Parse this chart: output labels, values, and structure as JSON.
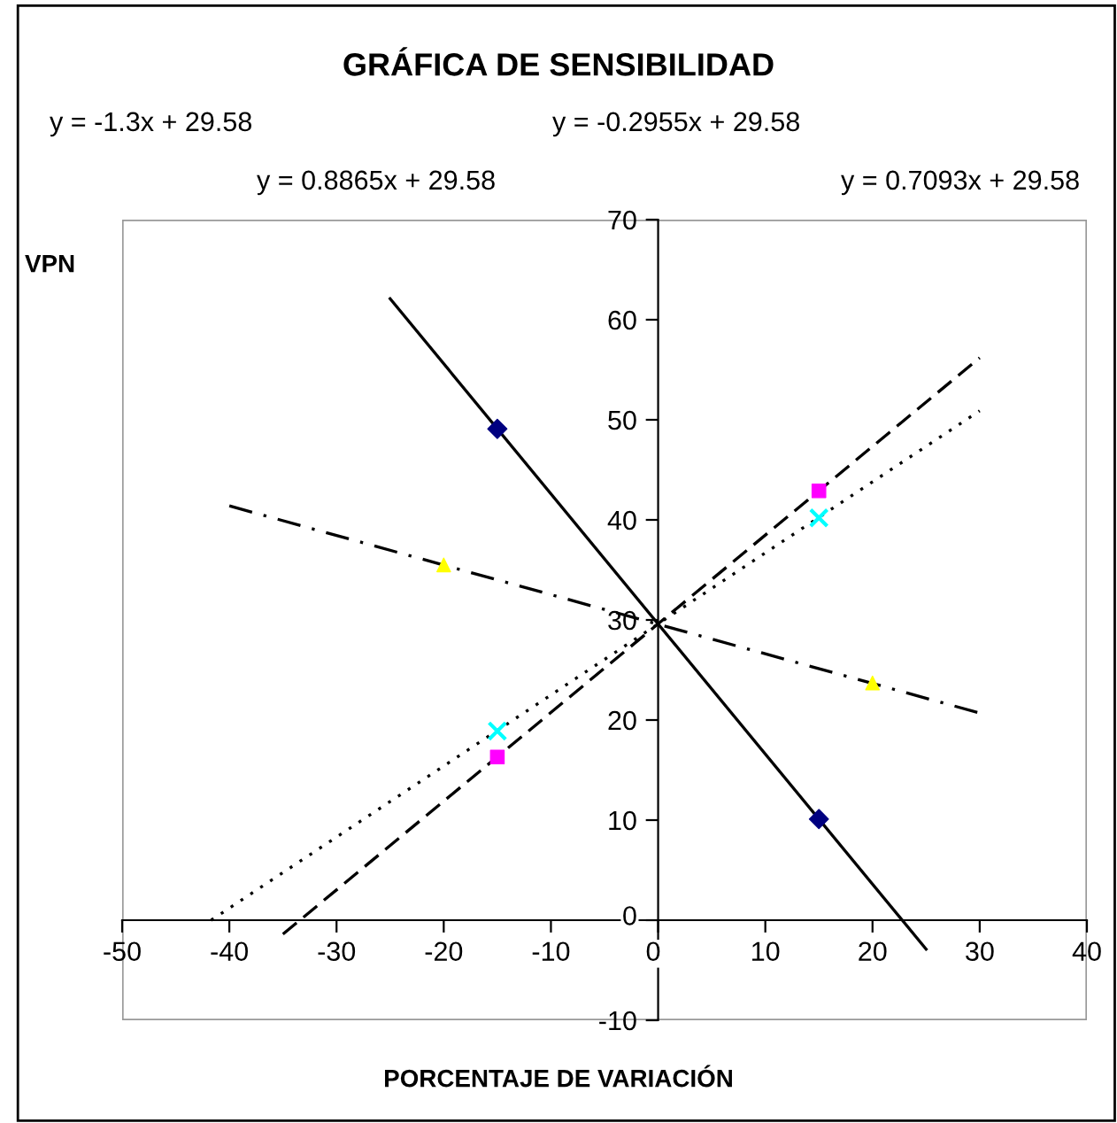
{
  "chart_data": {
    "type": "scatter",
    "title": "GRÁFICA DE SENSIBILIDAD",
    "xlabel": "PORCENTAJE DE VARIACIÓN",
    "ylabel": "VPN",
    "xlim": [
      -50,
      40
    ],
    "xticks": [
      -50,
      -40,
      -30,
      -20,
      -10,
      0,
      10,
      20,
      30,
      40
    ],
    "ylim": [
      -10,
      70
    ],
    "yticks": [
      -10,
      0,
      10,
      20,
      30,
      40,
      50,
      60,
      70
    ],
    "grid": false,
    "legend": false,
    "series": [
      {
        "type": "scatter",
        "color": "#000080",
        "marker": "diamond",
        "x": [
          -15,
          15
        ],
        "values": [
          49.1,
          10.1
        ]
      },
      {
        "type": "scatter",
        "color": "#ff00ff",
        "marker": "square",
        "x": [
          -15,
          15
        ],
        "values": [
          16.3,
          42.9
        ]
      },
      {
        "type": "scatter",
        "color": "#00ffff",
        "marker": "cross",
        "x": [
          -15,
          15
        ],
        "values": [
          18.9,
          40.2
        ]
      },
      {
        "type": "scatter",
        "color": "#ffff00",
        "marker": "triangle",
        "x": [
          -20,
          20
        ],
        "values": [
          35.5,
          23.7
        ]
      },
      {
        "type": "line",
        "color": "#000000",
        "line_style": "solid",
        "x": [
          -25,
          25
        ],
        "values": [
          62.1,
          -2.9
        ]
      },
      {
        "type": "line",
        "color": "#000000",
        "line_style": "dashed",
        "x": [
          -35,
          30
        ],
        "values": [
          -1.4,
          56.2
        ]
      },
      {
        "type": "line",
        "color": "#000000",
        "line_style": "dotted",
        "x": [
          -41.7,
          30
        ],
        "values": [
          0.0,
          50.9
        ]
      },
      {
        "type": "line",
        "color": "#000000",
        "line_style": "dashdot",
        "x": [
          -40,
          30
        ],
        "values": [
          41.4,
          20.7
        ]
      }
    ],
    "annotations": [
      "y = -1.3x + 29.58",
      "y = -0.2955x + 29.58",
      "y = 0.8865x + 29.58",
      "y = 0.7093x + 29.58"
    ]
  }
}
